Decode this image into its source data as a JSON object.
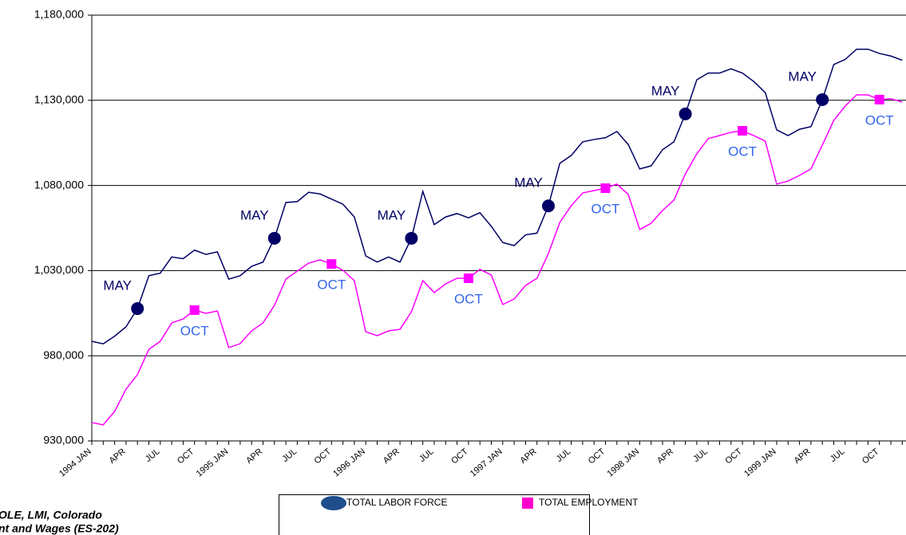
{
  "chart_data": {
    "type": "line",
    "categories": [
      "1994 JAN",
      null,
      null,
      "APR",
      null,
      null,
      "JUL",
      null,
      null,
      "OCT",
      null,
      null,
      "1995 JAN",
      null,
      null,
      "APR",
      null,
      null,
      "JUL",
      null,
      null,
      "OCT",
      null,
      null,
      "1996 JAN",
      null,
      null,
      "APR",
      null,
      null,
      "JUL",
      null,
      null,
      "OCT",
      null,
      null,
      "1997 JAN",
      null,
      null,
      "APR",
      null,
      null,
      "JUL",
      null,
      null,
      "OCT",
      null,
      null,
      "1998 JAN",
      null,
      null,
      "APR",
      null,
      null,
      "JUL",
      null,
      null,
      "OCT",
      null,
      null,
      "1999 JAN",
      null,
      null,
      "APR",
      null,
      null,
      "JUL",
      null,
      null,
      "OCT",
      null,
      null
    ],
    "series": [
      {
        "name": "TOTAL LABOR FORCE",
        "color": "#000066",
        "marker_color": "#000066",
        "legend_color": "#1f4e8c",
        "values": [
          988500,
          987000,
          991500,
          997000,
          1007700,
          1027000,
          1028500,
          1038000,
          1037000,
          1042000,
          1039500,
          1041000,
          1025000,
          1027000,
          1032500,
          1035000,
          1049000,
          1070000,
          1070500,
          1076000,
          1075000,
          1072000,
          1069000,
          1061500,
          1038600,
          1035000,
          1038000,
          1035000,
          1049000,
          1076500,
          1057000,
          1061500,
          1063500,
          1061000,
          1064000,
          1056000,
          1046500,
          1044700,
          1051000,
          1052000,
          1068000,
          1093000,
          1097600,
          1105600,
          1107000,
          1108000,
          1111700,
          1104000,
          1089700,
          1091500,
          1101000,
          1105600,
          1122000,
          1142000,
          1146000,
          1146000,
          1148500,
          1146000,
          1141000,
          1134500,
          1112600,
          1109300,
          1113000,
          1114500,
          1130400,
          1151000,
          1154000,
          1160000,
          1160000,
          1157500,
          1156000,
          1153500
        ]
      },
      {
        "name": "TOTAL EMPLOYMENT",
        "color": "#ff00ff",
        "marker_color": "#ff00ff",
        "legend_color": "#ff00cc",
        "values": [
          940800,
          939400,
          947300,
          960400,
          968900,
          983800,
          988500,
          999300,
          1001600,
          1006800,
          1004900,
          1006300,
          984800,
          987100,
          994600,
          999300,
          1009600,
          1025000,
          1029700,
          1034400,
          1036300,
          1033900,
          1030200,
          1024100,
          994100,
          991800,
          994600,
          995500,
          1005800,
          1024100,
          1017100,
          1022200,
          1025500,
          1025500,
          1030700,
          1027400,
          1010100,
          1013300,
          1021300,
          1025500,
          1040000,
          1058300,
          1068100,
          1075600,
          1077000,
          1078400,
          1080800,
          1074700,
          1054100,
          1057800,
          1065300,
          1071400,
          1086800,
          1098600,
          1107500,
          1109300,
          1111200,
          1112100,
          1109300,
          1106000,
          1080800,
          1082600,
          1085900,
          1089700,
          1103700,
          1118200,
          1126600,
          1133200,
          1133200,
          1130400,
          1130900,
          1129000
        ]
      }
    ],
    "annotations": [
      {
        "text": "MAY",
        "series": 0,
        "index": 4
      },
      {
        "text": "MAY",
        "series": 0,
        "index": 16
      },
      {
        "text": "MAY",
        "series": 0,
        "index": 28
      },
      {
        "text": "MAY",
        "series": 0,
        "index": 40
      },
      {
        "text": "MAY",
        "series": 0,
        "index": 52
      },
      {
        "text": "MAY",
        "series": 0,
        "index": 64
      },
      {
        "text": "OCT",
        "series": 1,
        "index": 9
      },
      {
        "text": "OCT",
        "series": 1,
        "index": 21
      },
      {
        "text": "OCT",
        "series": 1,
        "index": 33
      },
      {
        "text": "OCT",
        "series": 1,
        "index": 45
      },
      {
        "text": "OCT",
        "series": 1,
        "index": 57
      },
      {
        "text": "OCT",
        "series": 1,
        "index": 69
      }
    ],
    "ylim": [
      930000,
      1180000
    ],
    "yticks": [
      {
        "value": 930000,
        "label": "930,000"
      },
      {
        "value": 980000,
        "label": "980,000"
      },
      {
        "value": 1030000,
        "label": "1,030,000"
      },
      {
        "value": 1080000,
        "label": "1,080,000"
      },
      {
        "value": 1130000,
        "label": "1,130,000"
      },
      {
        "value": 1180000,
        "label": "1,180,000"
      }
    ],
    "grid": true,
    "source": [
      "OLE, LMI, Colorado",
      "nt and Wages (ES-202)"
    ]
  }
}
